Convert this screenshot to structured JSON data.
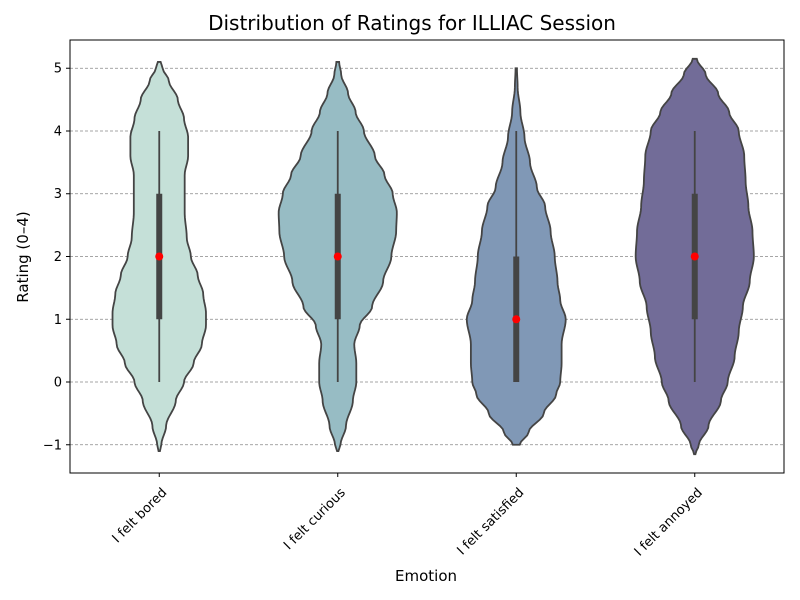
{
  "chart_data": {
    "type": "violin",
    "title": "Distribution of Ratings for ILLIAC Session",
    "xlabel": "Emotion",
    "ylabel": "Rating (0–4)",
    "ylim": [
      -1.45,
      5.45
    ],
    "yticks": [
      -1,
      0,
      1,
      2,
      3,
      4,
      5
    ],
    "ytick_labels": [
      "−1",
      "0",
      "1",
      "2",
      "3",
      "4",
      "5"
    ],
    "grid": "horizontal dashed",
    "median_marker_color": "#ff0000",
    "categories": [
      "I felt bored",
      "I felt curious",
      "I felt satisfied",
      "I felt annoyed"
    ],
    "violins": [
      {
        "category": "I felt bored",
        "color": "#c5e0d8",
        "min": 0,
        "q1": 1,
        "median": 2,
        "q3": 3,
        "max": 4,
        "density_extent": [
          -1.1,
          5.1
        ],
        "profile": [
          [
            -1.1,
            0.01
          ],
          [
            -1.0,
            0.03
          ],
          [
            -0.7,
            0.1
          ],
          [
            -0.3,
            0.24
          ],
          [
            0,
            0.36
          ],
          [
            0.3,
            0.5
          ],
          [
            0.6,
            0.62
          ],
          [
            0.9,
            0.68
          ],
          [
            1.1,
            0.68
          ],
          [
            1.4,
            0.64
          ],
          [
            1.7,
            0.56
          ],
          [
            2.0,
            0.46
          ],
          [
            2.3,
            0.4
          ],
          [
            2.7,
            0.37
          ],
          [
            3.0,
            0.37
          ],
          [
            3.3,
            0.37
          ],
          [
            3.6,
            0.42
          ],
          [
            3.9,
            0.42
          ],
          [
            4.2,
            0.36
          ],
          [
            4.5,
            0.27
          ],
          [
            4.8,
            0.14
          ],
          [
            5.0,
            0.05
          ],
          [
            5.1,
            0.02
          ]
        ]
      },
      {
        "category": "I felt curious",
        "color": "#97bcc4",
        "min": 0,
        "q1": 1,
        "median": 2,
        "q3": 3,
        "max": 4,
        "density_extent": [
          -1.1,
          5.1
        ],
        "profile": [
          [
            -1.1,
            0.01
          ],
          [
            -1.0,
            0.04
          ],
          [
            -0.7,
            0.12
          ],
          [
            -0.3,
            0.22
          ],
          [
            0,
            0.27
          ],
          [
            0.3,
            0.27
          ],
          [
            0.6,
            0.24
          ],
          [
            0.9,
            0.32
          ],
          [
            1.2,
            0.5
          ],
          [
            1.6,
            0.66
          ],
          [
            2.0,
            0.78
          ],
          [
            2.4,
            0.85
          ],
          [
            2.7,
            0.86
          ],
          [
            3.0,
            0.8
          ],
          [
            3.3,
            0.68
          ],
          [
            3.6,
            0.54
          ],
          [
            4.0,
            0.38
          ],
          [
            4.3,
            0.26
          ],
          [
            4.6,
            0.15
          ],
          [
            4.9,
            0.05
          ],
          [
            5.1,
            0.02
          ]
        ]
      },
      {
        "category": "I felt satisfied",
        "color": "#8098b6",
        "min": 0,
        "q1": 0,
        "median": 1,
        "q3": 2,
        "max": 4,
        "density_extent": [
          -1.0,
          5.0
        ],
        "profile": [
          [
            -1.0,
            0.05
          ],
          [
            -0.8,
            0.18
          ],
          [
            -0.5,
            0.4
          ],
          [
            -0.2,
            0.58
          ],
          [
            0,
            0.64
          ],
          [
            0.3,
            0.66
          ],
          [
            0.6,
            0.66
          ],
          [
            1.0,
            0.72
          ],
          [
            1.3,
            0.64
          ],
          [
            1.6,
            0.6
          ],
          [
            2.0,
            0.56
          ],
          [
            2.4,
            0.5
          ],
          [
            2.8,
            0.42
          ],
          [
            3.1,
            0.3
          ],
          [
            3.5,
            0.2
          ],
          [
            3.9,
            0.12
          ],
          [
            4.3,
            0.06
          ],
          [
            4.7,
            0.02
          ],
          [
            5.0,
            0.01
          ]
        ]
      },
      {
        "category": "I felt annoyed",
        "color": "#726c98",
        "min": 0,
        "q1": 1,
        "median": 2,
        "q3": 3,
        "max": 4,
        "density_extent": [
          -1.15,
          5.15
        ],
        "profile": [
          [
            -1.15,
            0.01
          ],
          [
            -1.0,
            0.06
          ],
          [
            -0.7,
            0.2
          ],
          [
            -0.3,
            0.38
          ],
          [
            0,
            0.48
          ],
          [
            0.4,
            0.58
          ],
          [
            0.8,
            0.64
          ],
          [
            1.2,
            0.7
          ],
          [
            1.6,
            0.8
          ],
          [
            2.0,
            0.86
          ],
          [
            2.4,
            0.84
          ],
          [
            2.8,
            0.78
          ],
          [
            3.2,
            0.74
          ],
          [
            3.6,
            0.72
          ],
          [
            4.0,
            0.64
          ],
          [
            4.3,
            0.5
          ],
          [
            4.6,
            0.34
          ],
          [
            4.9,
            0.16
          ],
          [
            5.15,
            0.03
          ]
        ]
      }
    ]
  }
}
